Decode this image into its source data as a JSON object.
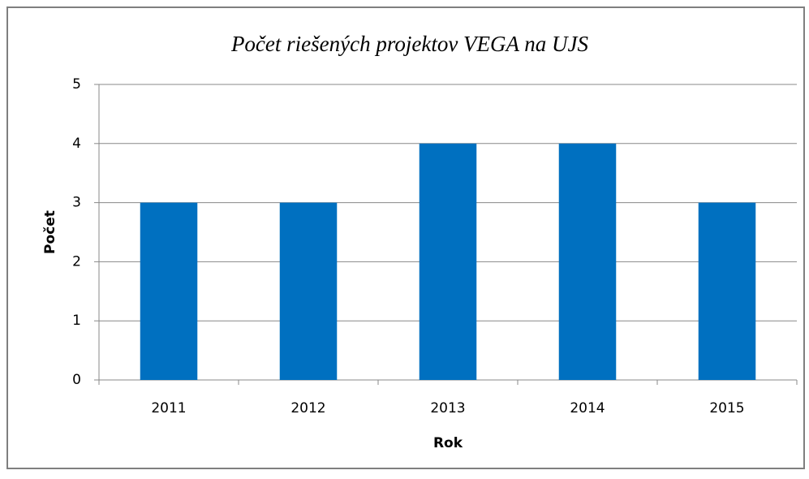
{
  "chart_data": {
    "type": "bar",
    "title": "Počet riešených projektov VEGA na UJS",
    "x_label": "Rok",
    "y_label": "Počet",
    "categories": [
      "2011",
      "2012",
      "2013",
      "2014",
      "2015"
    ],
    "values": [
      3,
      3,
      4,
      4,
      3
    ],
    "color": "#0070c0",
    "ylim": [
      0,
      5
    ],
    "yticks": [
      0,
      1,
      2,
      3,
      4,
      5
    ],
    "grid": true
  }
}
